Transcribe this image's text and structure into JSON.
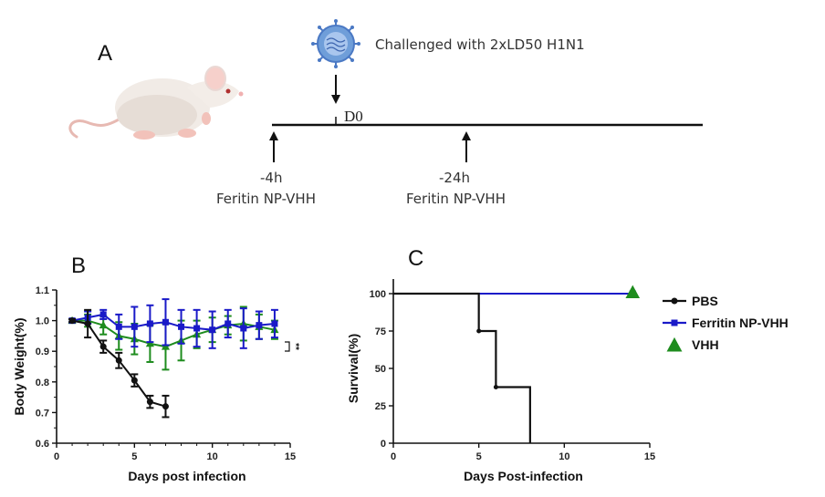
{
  "panel_a": {
    "label": "A",
    "challenge_text": "Challenged with 2xLD50 H1N1",
    "day_label": "D0",
    "doses": [
      {
        "time": "-4h",
        "agent": "Feritin NP-VHH"
      },
      {
        "time": "-24h",
        "agent": "Feritin NP-VHH"
      }
    ],
    "icons": {
      "animal": "mouse-icon",
      "virus": "virus-icon"
    }
  },
  "panel_b": {
    "label": "B"
  },
  "panel_c": {
    "label": "C"
  },
  "colors": {
    "pbs": "#111111",
    "ferritin": "#1a1ac8",
    "vhh": "#1e8c1e",
    "axis": "#111111"
  },
  "chart_data": [
    {
      "type": "line",
      "panel": "B",
      "title": "",
      "xlabel": "Days post infection",
      "ylabel": "Body Weight(%)",
      "xlim": [
        0,
        15
      ],
      "ylim": [
        0.6,
        1.1
      ],
      "xticks": [
        "0",
        "5",
        "10",
        "15"
      ],
      "xtick_values": [
        0,
        5,
        10,
        15
      ],
      "yticks": [
        "0.6",
        "0.7",
        "0.8",
        "0.9",
        "1.0",
        "1.1"
      ],
      "ytick_values": [
        0.6,
        0.7,
        0.8,
        0.9,
        1.0,
        1.1
      ],
      "grid": false,
      "annotation": "**",
      "series": [
        {
          "name": "PBS",
          "color_key": "pbs",
          "marker": "circle",
          "x": [
            1,
            2,
            3,
            4,
            5,
            6,
            7
          ],
          "y": [
            1.0,
            0.99,
            0.915,
            0.87,
            0.805,
            0.735,
            0.72
          ],
          "err": [
            0.005,
            0.045,
            0.02,
            0.025,
            0.02,
            0.02,
            0.035
          ]
        },
        {
          "name": "Ferritin NP-VHH",
          "color_key": "ferritin",
          "marker": "square",
          "x": [
            1,
            2,
            3,
            4,
            5,
            6,
            7,
            8,
            9,
            10,
            11,
            12,
            13,
            14
          ],
          "y": [
            1.0,
            1.01,
            1.02,
            0.98,
            0.98,
            0.99,
            0.995,
            0.98,
            0.975,
            0.97,
            0.99,
            0.975,
            0.985,
            0.99
          ],
          "err": [
            0.005,
            0.02,
            0.015,
            0.04,
            0.065,
            0.06,
            0.075,
            0.055,
            0.06,
            0.06,
            0.045,
            0.065,
            0.045,
            0.045
          ]
        },
        {
          "name": "VHH",
          "color_key": "vhh",
          "marker": "triangle",
          "x": [
            1,
            2,
            3,
            4,
            5,
            6,
            7,
            8,
            9,
            10,
            11,
            12,
            13,
            14
          ],
          "y": [
            1.0,
            1.0,
            0.985,
            0.95,
            0.94,
            0.925,
            0.915,
            0.935,
            0.955,
            0.97,
            0.985,
            0.99,
            0.98,
            0.97
          ],
          "err": [
            0.005,
            0.02,
            0.03,
            0.045,
            0.05,
            0.06,
            0.075,
            0.065,
            0.045,
            0.04,
            0.03,
            0.055,
            0.04,
            0.03
          ]
        }
      ]
    },
    {
      "type": "line",
      "subtype": "step",
      "panel": "C",
      "title": "",
      "xlabel": "Days Post-infection",
      "ylabel": "Survival(%)",
      "xlim": [
        0,
        15
      ],
      "ylim": [
        0,
        100
      ],
      "xticks": [
        "0",
        "5",
        "10",
        "15"
      ],
      "xtick_values": [
        0,
        5,
        10,
        15
      ],
      "yticks": [
        "0",
        "25",
        "50",
        "75",
        "100"
      ],
      "ytick_values": [
        0,
        25,
        50,
        75,
        100
      ],
      "grid": false,
      "legend_position": "right",
      "series": [
        {
          "name": "PBS",
          "color_key": "pbs",
          "marker": "circle",
          "x": [
            0,
            5,
            6,
            8
          ],
          "y": [
            100,
            75,
            37.5,
            0
          ],
          "marked_x": [
            5,
            6
          ]
        },
        {
          "name": "Ferritin NP-VHH",
          "color_key": "ferritin",
          "marker": "square",
          "x": [
            0,
            14
          ],
          "y": [
            100,
            100
          ],
          "marked_x": [
            14
          ]
        },
        {
          "name": "VHH",
          "color_key": "vhh",
          "marker": "triangle",
          "x": [
            0,
            14
          ],
          "y": [
            100,
            100
          ],
          "marked_x": [
            14
          ]
        }
      ]
    }
  ]
}
